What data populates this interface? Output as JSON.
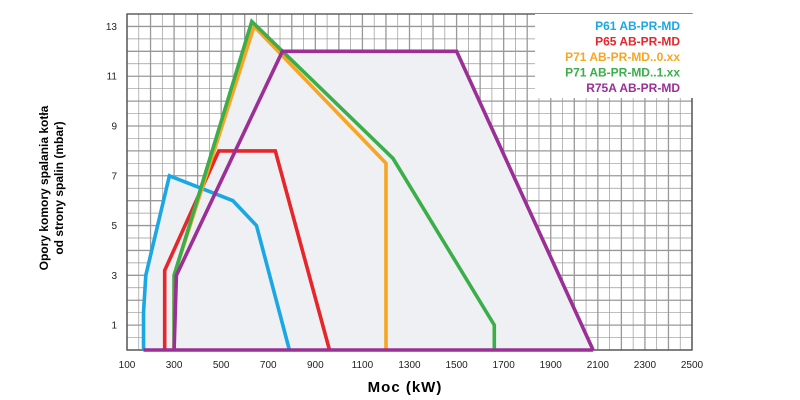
{
  "chart_data": {
    "type": "area",
    "xlabel": "Moc (kW)",
    "ylabel_line1": "Opory komory spalania kotła",
    "ylabel_line2": "od strony spalin (mbar)",
    "xlim": [
      100,
      2500
    ],
    "ylim": [
      0,
      13.5
    ],
    "x_ticks": [
      100,
      300,
      500,
      700,
      900,
      1100,
      1300,
      1500,
      1700,
      1900,
      2100,
      2300,
      2500
    ],
    "y_ticks": [
      1,
      3,
      5,
      7,
      9,
      11,
      13
    ],
    "grid": true,
    "legend_position": "top-right",
    "fill_color": "#eef0f3",
    "grid_color": "#999999",
    "series": [
      {
        "name": "P61 AB-PR-MD",
        "color": "#1aa7e4",
        "points": [
          [
            170,
            0
          ],
          [
            170,
            1.5
          ],
          [
            180,
            3
          ],
          [
            280,
            7
          ],
          [
            550,
            6
          ],
          [
            650,
            5
          ],
          [
            790,
            0
          ]
        ]
      },
      {
        "name": "P65 AB-PR-MD",
        "color": "#e5262b",
        "points": [
          [
            260,
            0
          ],
          [
            260,
            3.2
          ],
          [
            490,
            8
          ],
          [
            730,
            8
          ],
          [
            960,
            0
          ]
        ]
      },
      {
        "name": "P71 AB-PR-MD..0.xx",
        "color": "#f6a623",
        "points": [
          [
            300,
            0
          ],
          [
            300,
            3
          ],
          [
            640,
            13
          ],
          [
            1200,
            7.5
          ],
          [
            1200,
            0
          ]
        ]
      },
      {
        "name": "P71 AB-PR-MD..1.xx",
        "color": "#3bae49",
        "points": [
          [
            300,
            0
          ],
          [
            300,
            3
          ],
          [
            630,
            13.2
          ],
          [
            1230,
            7.7
          ],
          [
            1660,
            1
          ],
          [
            1660,
            0
          ]
        ]
      },
      {
        "name": "R75A AB-PR-MD",
        "color": "#9b2f96",
        "points": [
          [
            300,
            0
          ],
          [
            310,
            3
          ],
          [
            760,
            12
          ],
          [
            1500,
            12
          ],
          [
            2080,
            0
          ]
        ]
      }
    ]
  }
}
